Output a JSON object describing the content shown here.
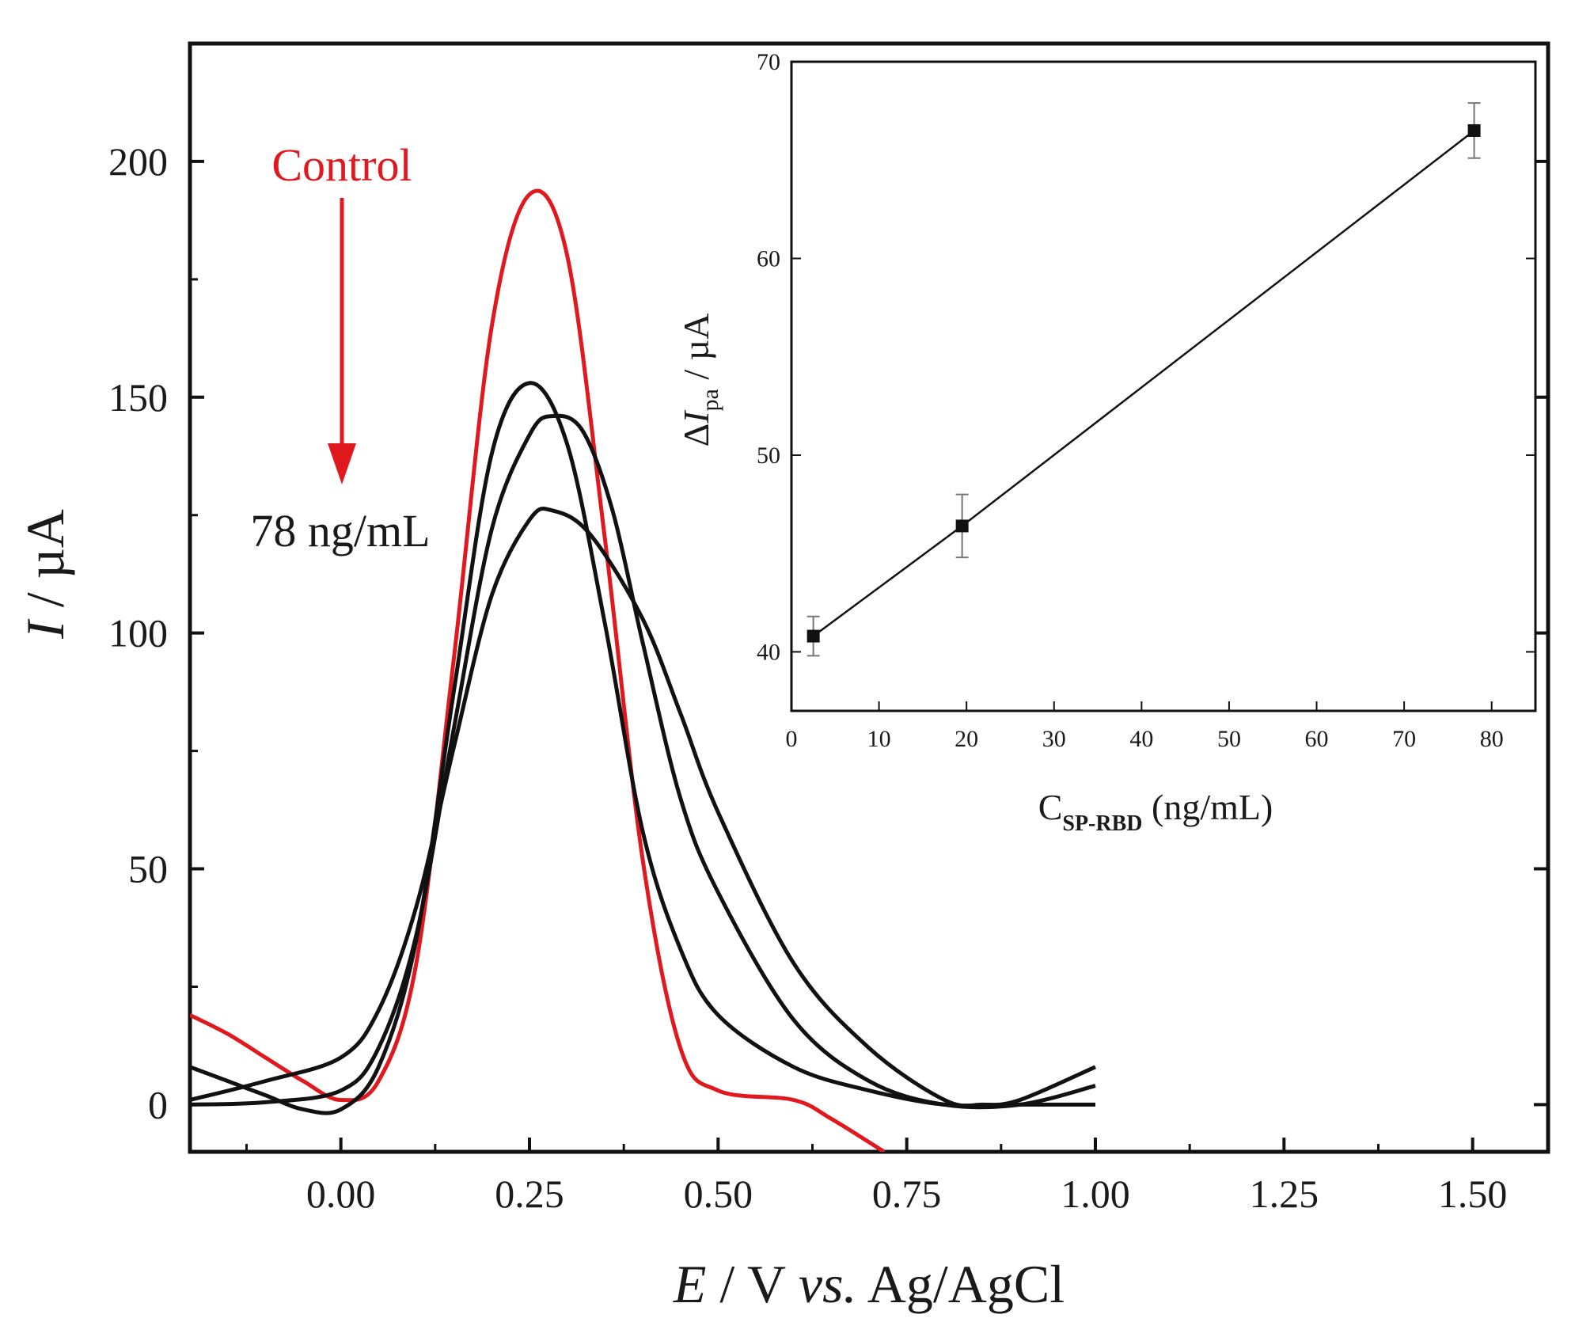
{
  "chart_data": [
    {
      "type": "line",
      "xlabel": {
        "var": "E",
        "rest": " / V ",
        "vs": "vs.",
        "ref": " Ag/AgCl"
      },
      "ylabel": {
        "var": "I",
        "unit": " / µA"
      },
      "xlim": [
        -0.2,
        1.6
      ],
      "ylim": [
        -10,
        225
      ],
      "x_ticks": [
        "0.00",
        "0.25",
        "0.50",
        "0.75",
        "1.00",
        "1.25",
        "1.50"
      ],
      "y_ticks": [
        "0",
        "50",
        "100",
        "150",
        "200"
      ],
      "grid": false,
      "annotations": {
        "top": "Control",
        "bottom": "78 ng/mL",
        "arrow": "down"
      },
      "series": [
        {
          "color": "#e0191f",
          "points": [
            [
              -0.2,
              19
            ],
            [
              -0.15,
              15
            ],
            [
              -0.1,
              10
            ],
            [
              -0.05,
              5
            ],
            [
              0,
              1
            ],
            [
              0.05,
              5
            ],
            [
              0.1,
              30
            ],
            [
              0.15,
              95
            ],
            [
              0.2,
              165
            ],
            [
              0.25,
              193
            ],
            [
              0.3,
              180
            ],
            [
              0.35,
              120
            ],
            [
              0.4,
              52
            ],
            [
              0.45,
              12
            ],
            [
              0.5,
              3
            ],
            [
              0.6,
              1
            ],
            [
              0.65,
              -3
            ],
            [
              0.72,
              -10
            ]
          ]
        },
        {
          "color": "#111111",
          "points": [
            [
              -0.2,
              8
            ],
            [
              -0.15,
              5
            ],
            [
              -0.1,
              2
            ],
            [
              -0.05,
              -1
            ],
            [
              0,
              -1
            ],
            [
              0.05,
              8
            ],
            [
              0.1,
              35
            ],
            [
              0.15,
              88
            ],
            [
              0.2,
              138
            ],
            [
              0.25,
              153
            ],
            [
              0.3,
              140
            ],
            [
              0.35,
              102
            ],
            [
              0.4,
              58
            ],
            [
              0.45,
              33
            ],
            [
              0.5,
              19
            ],
            [
              0.6,
              8
            ],
            [
              0.7,
              3
            ],
            [
              0.8,
              0
            ],
            [
              0.9,
              0
            ],
            [
              1.0,
              0
            ]
          ]
        },
        {
          "color": "#111111",
          "points": [
            [
              -0.2,
              0
            ],
            [
              -0.1,
              0.5
            ],
            [
              0,
              3
            ],
            [
              0.05,
              12
            ],
            [
              0.1,
              36
            ],
            [
              0.15,
              80
            ],
            [
              0.2,
              122
            ],
            [
              0.25,
              142
            ],
            [
              0.28,
              146
            ],
            [
              0.32,
              143
            ],
            [
              0.36,
              126
            ],
            [
              0.4,
              98
            ],
            [
              0.45,
              65
            ],
            [
              0.5,
              45
            ],
            [
              0.6,
              18
            ],
            [
              0.7,
              5
            ],
            [
              0.8,
              0
            ],
            [
              0.9,
              0
            ],
            [
              1.0,
              4
            ]
          ]
        },
        {
          "color": "#111111",
          "points": [
            [
              -0.2,
              1
            ],
            [
              -0.1,
              5
            ],
            [
              0,
              10
            ],
            [
              0.05,
              20
            ],
            [
              0.1,
              42
            ],
            [
              0.15,
              76
            ],
            [
              0.2,
              108
            ],
            [
              0.25,
              124
            ],
            [
              0.28,
              126
            ],
            [
              0.33,
              121
            ],
            [
              0.4,
              103
            ],
            [
              0.45,
              83
            ],
            [
              0.5,
              62
            ],
            [
              0.6,
              30
            ],
            [
              0.7,
              12
            ],
            [
              0.8,
              1
            ],
            [
              0.85,
              0
            ],
            [
              0.9,
              1
            ],
            [
              1.0,
              8
            ]
          ]
        }
      ]
    },
    {
      "type": "scatter",
      "xlabel": {
        "main": "C",
        "sub": "SP-RBD",
        "rest": " (ng/mL)"
      },
      "ylabel": {
        "pre": "Δ",
        "var": "I",
        "sub": "pa",
        "unit": " / µA"
      },
      "xlim": [
        0,
        85
      ],
      "ylim": [
        37,
        70
      ],
      "x_ticks": [
        "0",
        "10",
        "20",
        "30",
        "40",
        "50",
        "60",
        "70",
        "80"
      ],
      "y_ticks": [
        "40",
        "50",
        "60",
        "70"
      ],
      "points": [
        {
          "x": 2.5,
          "y": 40.8,
          "err": 1.0
        },
        {
          "x": 19.5,
          "y": 46.4,
          "err": 1.6
        },
        {
          "x": 78,
          "y": 66.5,
          "err": 1.4
        }
      ],
      "fit_line": true
    }
  ]
}
